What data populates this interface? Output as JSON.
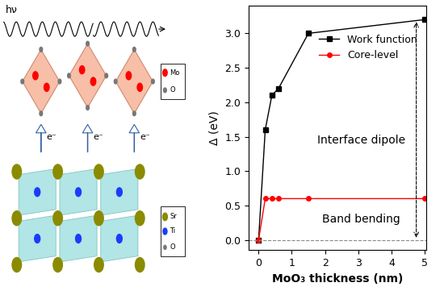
{
  "chart_data": {
    "type": "line",
    "x_label": "MoO₃ thickness (nm)",
    "y_label": "Δ (eV)",
    "series": [
      {
        "name": "Work function",
        "color": "#000000",
        "marker": "square",
        "line_style": "solid",
        "x": [
          0,
          0.2,
          0.4,
          0.6,
          1.5,
          5.0
        ],
        "values": [
          0,
          1.6,
          2.1,
          2.2,
          3.0,
          3.2
        ]
      },
      {
        "name": "Core-level",
        "color": "#ff0000",
        "marker": "circle",
        "line_style": "solid",
        "x": [
          0,
          0.2,
          0.4,
          0.6,
          1.5,
          5.0
        ],
        "values": [
          0,
          0.6,
          0.6,
          0.6,
          0.6,
          0.6
        ]
      }
    ],
    "annotations": [
      "Interface dipole",
      "Band bending"
    ],
    "xlim": [
      -0.3,
      5.05
    ],
    "xticks": [
      0,
      1,
      2,
      3,
      4,
      5
    ],
    "ylim": [
      -0.15,
      3.4
    ],
    "yticks": [
      {
        "value": 0,
        "label": "0.0"
      },
      {
        "value": 0.5,
        "label": "0.5"
      },
      {
        "value": 1,
        "label": "1.0"
      },
      {
        "value": 1.5,
        "label": "1.5"
      },
      {
        "value": 2,
        "label": "2.0"
      },
      {
        "value": 2.5,
        "label": "2.5"
      },
      {
        "value": 3,
        "label": "3.0"
      }
    ],
    "legend": "upper right",
    "grid": false
  },
  "diagram": {
    "photon": "hν",
    "electron": "e⁻",
    "top_legend": [
      "Mo",
      "O"
    ],
    "bottom_legend": [
      "Sr",
      "Ti",
      "O"
    ]
  }
}
